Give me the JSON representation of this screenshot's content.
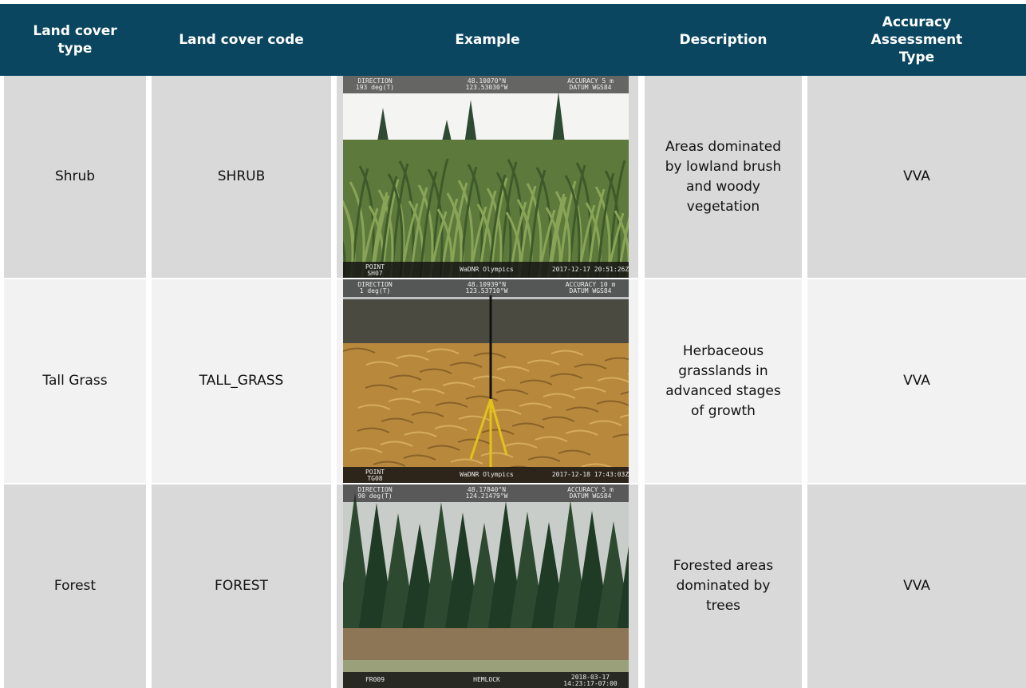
{
  "header": {
    "columns": [
      "Land cover type",
      "Land cover code",
      "Example",
      "Description",
      "Accuracy Assessment Type"
    ]
  },
  "rows": [
    {
      "type": "Shrub",
      "code": "SHRUB",
      "description": "Areas dominated by lowland brush and woody vegetation",
      "accuracy": "VVA",
      "photo": {
        "top": [
          [
            "DIRECTION",
            "193 deg(T)"
          ],
          [
            "48.10070°N",
            "123.53030°W"
          ],
          [
            "ACCURACY 5 m",
            "DATUM WGS84"
          ]
        ],
        "bottom": [
          [
            "POINT",
            "SH07"
          ],
          [
            "WaDNR Olympics"
          ],
          [
            "2017-12-17 20:51:26Z"
          ]
        ]
      }
    },
    {
      "type": "Tall Grass",
      "code": "TALL_GRASS",
      "description": "Herbaceous grasslands in advanced stages of growth",
      "accuracy": "VVA",
      "photo": {
        "top": [
          [
            "DIRECTION",
            "1 deg(T)"
          ],
          [
            "48.10939°N",
            "123.53710°W"
          ],
          [
            "ACCURACY 10 m",
            "DATUM WGS84"
          ]
        ],
        "bottom": [
          [
            "POINT",
            "TG08"
          ],
          [
            "WaDNR Olympics"
          ],
          [
            "2017-12-18 17:43:03Z"
          ]
        ]
      }
    },
    {
      "type": "Forest",
      "code": "FOREST",
      "description": "Forested areas dominated by trees",
      "accuracy": "VVA",
      "photo": {
        "top": [
          [
            "DIRECTION",
            "90 deg(T)"
          ],
          [
            "48.17840°N",
            "124.21479°W"
          ],
          [
            "ACCURACY 5 m",
            "DATUM WGS84"
          ]
        ],
        "bottom": [
          [
            "FR009"
          ],
          [
            "HEMLOCK"
          ],
          [
            "2018-03-17",
            "14:23:17-07:00"
          ]
        ]
      }
    }
  ]
}
